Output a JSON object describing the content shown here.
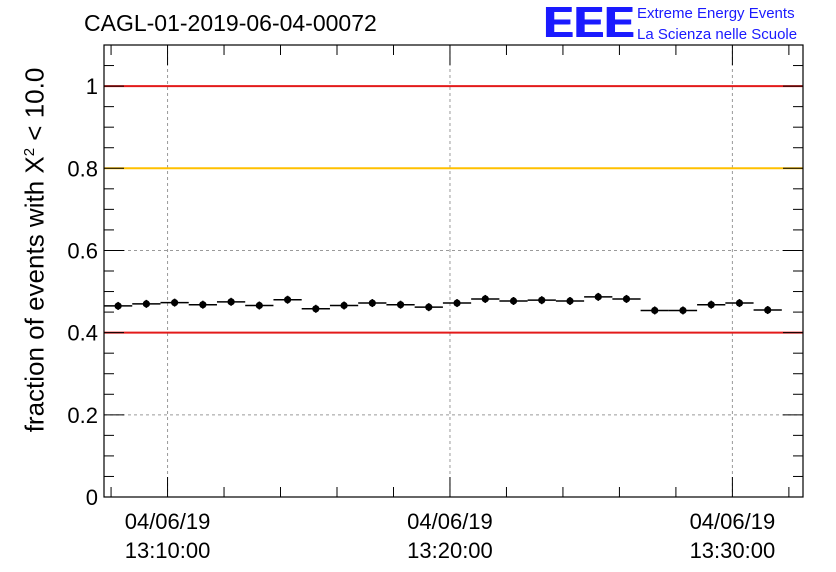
{
  "header": {
    "title": "CAGL-01-2019-06-04-00072"
  },
  "logo": {
    "mark": "EEE",
    "line1": "Extreme Energy Events",
    "line2": "La Scienza nelle Scuole",
    "color": "#1a1aff"
  },
  "chart_data": {
    "type": "scatter",
    "title": "CAGL-01-2019-06-04-00072",
    "ylabel_prefix": "fraction of events with X",
    "ylabel_sup": "2",
    "ylabel_suffix": " < 10.0",
    "xlabel": "",
    "ylim": [
      0,
      1.1
    ],
    "yticks": [
      0,
      0.2,
      0.4,
      0.6,
      0.8,
      1
    ],
    "yticklabels": [
      "0",
      "0.2",
      "0.4",
      "0.6",
      "0.8",
      "1"
    ],
    "xlim": [
      "13:07:45",
      "13:32:30"
    ],
    "xticks": [
      {
        "time": "13:10:00",
        "label": [
          "04/06/19",
          "13:10:00"
        ]
      },
      {
        "time": "13:20:00",
        "label": [
          "04/06/19",
          "13:20:00"
        ]
      },
      {
        "time": "13:30:00",
        "label": [
          "04/06/19",
          "13:30:00"
        ]
      }
    ],
    "grid": true,
    "reference_lines": [
      {
        "y": 1.0,
        "color": "#e31a1a"
      },
      {
        "y": 0.8,
        "color": "#ffc000"
      },
      {
        "y": 0.4,
        "color": "#e31a1a"
      }
    ],
    "bin_width_seconds": 60,
    "series": [
      {
        "color": "#000000",
        "points": [
          {
            "x": "13:08:15",
            "y": 0.465
          },
          {
            "x": "13:09:15",
            "y": 0.47
          },
          {
            "x": "13:10:15",
            "y": 0.473
          },
          {
            "x": "13:11:15",
            "y": 0.468
          },
          {
            "x": "13:12:15",
            "y": 0.475
          },
          {
            "x": "13:13:15",
            "y": 0.466
          },
          {
            "x": "13:14:15",
            "y": 0.48
          },
          {
            "x": "13:15:15",
            "y": 0.458
          },
          {
            "x": "13:16:15",
            "y": 0.466
          },
          {
            "x": "13:17:15",
            "y": 0.472
          },
          {
            "x": "13:18:15",
            "y": 0.468
          },
          {
            "x": "13:19:15",
            "y": 0.462
          },
          {
            "x": "13:20:15",
            "y": 0.472
          },
          {
            "x": "13:21:15",
            "y": 0.482
          },
          {
            "x": "13:22:15",
            "y": 0.477
          },
          {
            "x": "13:23:15",
            "y": 0.479
          },
          {
            "x": "13:24:15",
            "y": 0.477
          },
          {
            "x": "13:25:15",
            "y": 0.487
          },
          {
            "x": "13:26:15",
            "y": 0.482
          },
          {
            "x": "13:27:15",
            "y": 0.454
          },
          {
            "x": "13:28:15",
            "y": 0.454
          },
          {
            "x": "13:29:15",
            "y": 0.468
          },
          {
            "x": "13:30:15",
            "y": 0.472
          },
          {
            "x": "13:31:15",
            "y": 0.455
          }
        ]
      }
    ]
  }
}
